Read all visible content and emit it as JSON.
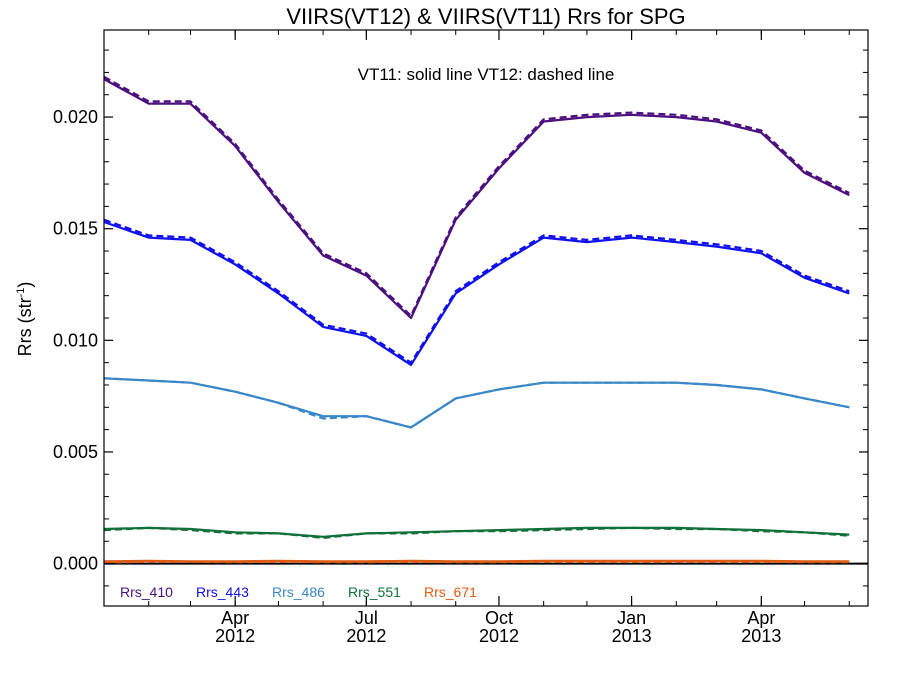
{
  "chart_data": {
    "type": "line",
    "title": "VIIRS(VT12) & VIIRS(VT11)  Rrs for SPG",
    "ylabel_main": "Rrs (str",
    "ylabel_sup": "-1",
    "ylabel_close": ")",
    "annotation": "VT11: solid line   VT12: dashed line",
    "ylim": [
      -0.0019,
      0.0239
    ],
    "xlim": [
      "2012-01-01",
      "2013-06-14"
    ],
    "y_ticks": [
      0.0,
      0.005,
      0.01,
      0.015,
      0.02
    ],
    "y_tick_labels": [
      "0.000",
      "0.005",
      "0.010",
      "0.015",
      "0.020"
    ],
    "x_ticks": [
      {
        "date": "2012-04-01",
        "month": "Apr",
        "year": "2012"
      },
      {
        "date": "2012-07-01",
        "month": "Jul",
        "year": "2012"
      },
      {
        "date": "2012-10-01",
        "month": "Oct",
        "year": "2012"
      },
      {
        "date": "2013-01-01",
        "month": "Jan",
        "year": "2013"
      },
      {
        "date": "2013-04-01",
        "month": "Apr",
        "year": "2013"
      }
    ],
    "x": [
      "2012-01-01",
      "2012-02-01",
      "2012-03-01",
      "2012-04-01",
      "2012-05-01",
      "2012-06-01",
      "2012-07-01",
      "2012-08-01",
      "2012-09-01",
      "2012-10-01",
      "2012-11-01",
      "2012-12-01",
      "2013-01-01",
      "2013-02-01",
      "2013-03-01",
      "2013-04-01",
      "2013-05-01",
      "2013-06-01"
    ],
    "series": [
      {
        "name": "Rrs_410",
        "color": "#4b0f7e",
        "vt11": [
          0.0217,
          0.0206,
          0.0206,
          0.0187,
          0.0162,
          0.0138,
          0.0129,
          0.011,
          0.0154,
          0.0177,
          0.0198,
          0.02,
          0.0201,
          0.02,
          0.0198,
          0.0193,
          0.0175,
          0.0165
        ],
        "vt12": [
          0.0218,
          0.0207,
          0.0207,
          0.0188,
          0.0163,
          0.0139,
          0.013,
          0.0111,
          0.0155,
          0.0178,
          0.0199,
          0.0201,
          0.0202,
          0.0201,
          0.0199,
          0.0194,
          0.0176,
          0.0166
        ]
      },
      {
        "name": "Rrs_443",
        "color": "#1010ee",
        "vt11": [
          0.0153,
          0.0146,
          0.0145,
          0.0134,
          0.0121,
          0.0106,
          0.0102,
          0.0089,
          0.0121,
          0.0134,
          0.0146,
          0.0144,
          0.0146,
          0.0144,
          0.0142,
          0.0139,
          0.0128,
          0.0121
        ],
        "vt12": [
          0.0154,
          0.0147,
          0.0146,
          0.0135,
          0.0122,
          0.0107,
          0.0103,
          0.009,
          0.0122,
          0.0135,
          0.0147,
          0.0145,
          0.0147,
          0.0145,
          0.0143,
          0.014,
          0.0129,
          0.0122
        ]
      },
      {
        "name": "Rrs_486",
        "color": "#3a87c8",
        "vt11": [
          0.0083,
          0.0082,
          0.0081,
          0.0077,
          0.0072,
          0.0066,
          0.0066,
          0.0061,
          0.0074,
          0.0078,
          0.0081,
          0.0081,
          0.0081,
          0.0081,
          0.008,
          0.0078,
          0.0074,
          0.007
        ],
        "vt12": [
          0.0083,
          0.0082,
          0.0081,
          0.0077,
          0.0072,
          0.0065,
          0.0066,
          0.0061,
          0.0074,
          0.0078,
          0.0081,
          0.0081,
          0.0081,
          0.0081,
          0.008,
          0.0078,
          0.0074,
          0.007
        ]
      },
      {
        "name": "Rrs_551",
        "color": "#11703a",
        "vt11": [
          0.00155,
          0.0016,
          0.00155,
          0.0014,
          0.00135,
          0.0012,
          0.00135,
          0.0014,
          0.00145,
          0.0015,
          0.00155,
          0.0016,
          0.0016,
          0.0016,
          0.00155,
          0.0015,
          0.0014,
          0.0013
        ],
        "vt12": [
          0.0015,
          0.0016,
          0.0015,
          0.00135,
          0.00135,
          0.00115,
          0.00135,
          0.00135,
          0.00145,
          0.00145,
          0.0015,
          0.00155,
          0.0016,
          0.00155,
          0.00155,
          0.00145,
          0.0014,
          0.00125
        ]
      },
      {
        "name": "Rrs_671",
        "color": "#e05a10",
        "vt11": [
          0.0001,
          0.00012,
          0.0001,
          0.0001,
          0.00012,
          0.0001,
          0.0001,
          0.00012,
          0.0001,
          0.0001,
          0.00012,
          0.00012,
          0.00012,
          0.00012,
          0.00012,
          0.00012,
          0.0001,
          0.0001
        ],
        "vt12": [
          5e-05,
          8e-05,
          8e-05,
          6e-05,
          8e-05,
          6e-05,
          6e-05,
          8e-05,
          6e-05,
          6e-05,
          8e-05,
          8e-05,
          8e-05,
          8e-05,
          8e-05,
          8e-05,
          6e-05,
          6e-05
        ]
      }
    ],
    "zero_line": true,
    "grid": false,
    "legend_position": "bottom-left"
  }
}
